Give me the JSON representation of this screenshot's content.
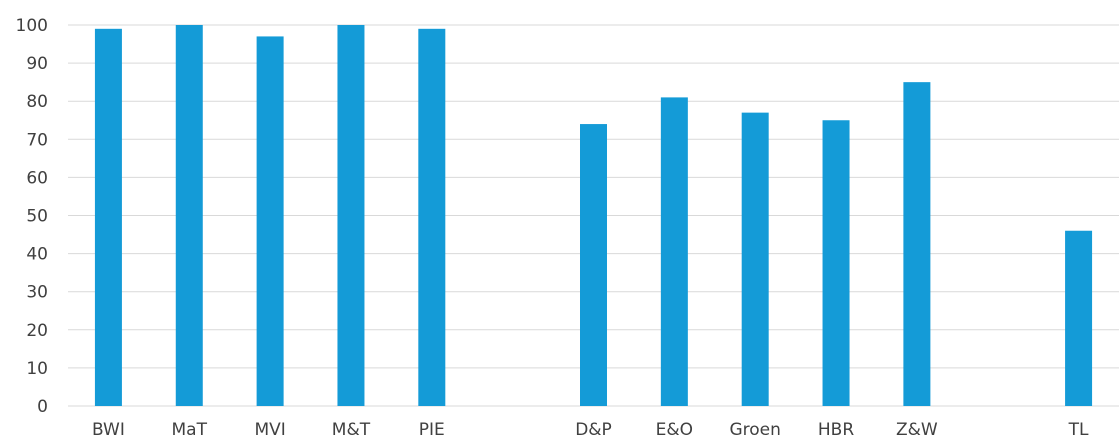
{
  "chart_data": {
    "type": "bar",
    "title": "",
    "xlabel": "",
    "ylabel": "",
    "ylim": [
      0,
      100
    ],
    "yticks": [
      0,
      10,
      20,
      30,
      40,
      50,
      60,
      70,
      80,
      90,
      100
    ],
    "grid": true,
    "legend": "none",
    "categories": [
      "BWI",
      "MaT",
      "MVI",
      "M&T",
      "PIE",
      "",
      "D&P",
      "E&O",
      "Groen",
      "HBR",
      "Z&W",
      "",
      "TL"
    ],
    "values": [
      99,
      100,
      97,
      100,
      99,
      null,
      74,
      81,
      77,
      75,
      85,
      null,
      46
    ],
    "bar_color": "#149bd7"
  }
}
